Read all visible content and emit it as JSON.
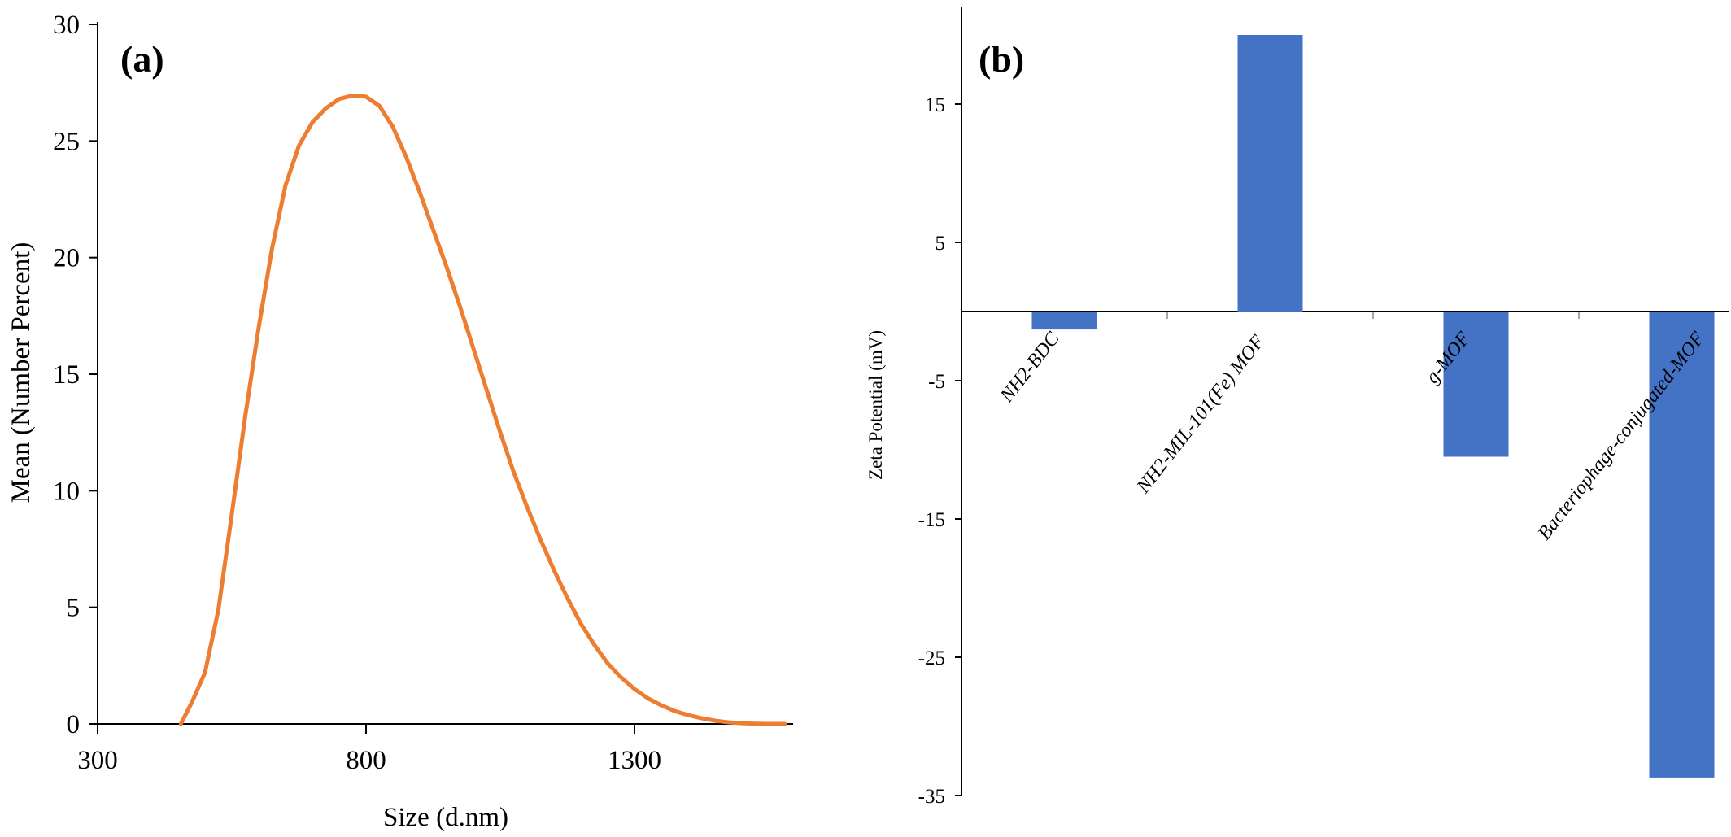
{
  "chart_data": [
    {
      "panel": "(a)",
      "type": "line",
      "xlabel": "Size (d.nm)",
      "ylabel": "Mean (Number Percent)",
      "xlim": [
        300,
        1580
      ],
      "ylim": [
        0,
        30
      ],
      "xticks": [
        300,
        800,
        1300
      ],
      "yticks": [
        0,
        5,
        10,
        15,
        20,
        25,
        30
      ],
      "color": "#ED7D31",
      "series": [
        {
          "x": [
            455,
            475,
            500,
            525,
            550,
            575,
            600,
            625,
            650,
            675,
            700,
            725,
            750,
            775,
            800,
            825,
            850,
            875,
            900,
            925,
            950,
            975,
            1000,
            1025,
            1050,
            1075,
            1100,
            1125,
            1150,
            1175,
            1200,
            1225,
            1250,
            1275,
            1300,
            1325,
            1350,
            1375,
            1400,
            1425,
            1450,
            1475,
            1500,
            1525,
            1550,
            1580
          ],
          "y": [
            0,
            0.9,
            2.2,
            4.9,
            9.0,
            13.2,
            17.0,
            20.4,
            23.1,
            24.8,
            25.8,
            26.4,
            26.8,
            26.95,
            26.9,
            26.5,
            25.6,
            24.3,
            22.8,
            21.2,
            19.6,
            17.9,
            16.1,
            14.3,
            12.5,
            10.8,
            9.3,
            7.9,
            6.6,
            5.4,
            4.3,
            3.4,
            2.6,
            2.0,
            1.5,
            1.1,
            0.8,
            0.55,
            0.38,
            0.24,
            0.14,
            0.07,
            0.03,
            0.01,
            0,
            0
          ]
        }
      ]
    },
    {
      "panel": "(b)",
      "type": "bar",
      "ylabel": "Zeta Potential  (mV)",
      "ylim": [
        -35,
        20
      ],
      "yticks": [
        15,
        5,
        -5,
        -15,
        -25,
        -35
      ],
      "color": "#4472C4",
      "categories": [
        "NH2-BDC",
        "NH2-MIL-101(Fe) MOF",
        "g-MOF",
        "Bacteriophage-conjugated-MOF"
      ],
      "values": [
        -1.3,
        20.0,
        -10.5,
        -33.7
      ]
    }
  ]
}
